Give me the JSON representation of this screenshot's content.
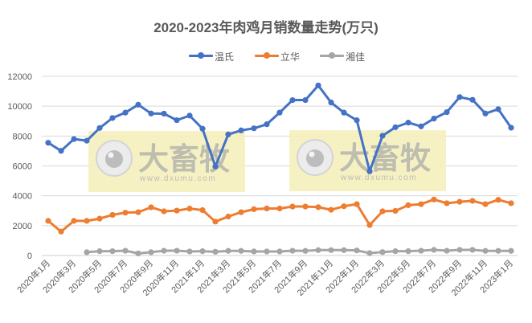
{
  "chart_data": {
    "type": "line",
    "title": "2020-2023年肉鸡月销数量走势(万只)",
    "xlabel": "",
    "ylabel": "",
    "ylim": [
      0,
      12000
    ],
    "yticks": [
      0,
      2000,
      4000,
      6000,
      8000,
      10000,
      12000
    ],
    "grid": true,
    "legend_position": "top",
    "categories": [
      "2020年1月",
      "2020年2月",
      "2020年3月",
      "2020年4月",
      "2020年5月",
      "2020年6月",
      "2020年7月",
      "2020年8月",
      "2020年9月",
      "2020年10月",
      "2020年11月",
      "2020年12月",
      "2021年1月",
      "2021年2月",
      "2021年3月",
      "2021年4月",
      "2021年5月",
      "2021年6月",
      "2021年7月",
      "2021年8月",
      "2021年9月",
      "2021年10月",
      "2021年11月",
      "2021年12月",
      "2022年1月",
      "2022年2月",
      "2022年3月",
      "2022年4月",
      "2022年5月",
      "2022年6月",
      "2022年7月",
      "2022年8月",
      "2022年9月",
      "2022年10月",
      "2022年11月",
      "2022年12月",
      "2023年1月"
    ],
    "x_tick_labels_shown": [
      "2020年1月",
      "2020年3月",
      "2020年5月",
      "2020年7月",
      "2020年9月",
      "2020年11月",
      "2021年1月",
      "2021年3月",
      "2021年5月",
      "2021年7月",
      "2021年9月",
      "2021年11月",
      "2022年1月",
      "2022年3月",
      "2022年5月",
      "2022年7月",
      "2022年9月",
      "2022年11月",
      "2023年1月"
    ],
    "series": [
      {
        "name": "温氏",
        "color": "#4472C4",
        "values": [
          7550,
          7010,
          7800,
          7690,
          8540,
          9210,
          9570,
          10100,
          9510,
          9500,
          9060,
          9370,
          8490,
          5960,
          8110,
          8380,
          8520,
          8790,
          9570,
          10410,
          10410,
          11390,
          10250,
          9570,
          9060,
          5640,
          8020,
          8590,
          8900,
          8650,
          9170,
          9600,
          10610,
          10430,
          9510,
          9800,
          8560
        ]
      },
      {
        "name": "立华",
        "color": "#ED7D31",
        "values": [
          2320,
          1600,
          2320,
          2320,
          2470,
          2720,
          2870,
          2900,
          3230,
          2960,
          3010,
          3140,
          3040,
          2270,
          2610,
          2900,
          3100,
          3150,
          3150,
          3280,
          3280,
          3240,
          3060,
          3300,
          3440,
          2040,
          2960,
          2990,
          3370,
          3440,
          3750,
          3500,
          3600,
          3660,
          3440,
          3730,
          3500
        ]
      },
      {
        "name": "湘佳",
        "color": "#A5A5A5",
        "values": [
          null,
          null,
          null,
          220,
          290,
          290,
          320,
          140,
          220,
          320,
          320,
          270,
          290,
          250,
          310,
          310,
          270,
          270,
          270,
          320,
          310,
          360,
          360,
          360,
          340,
          160,
          230,
          290,
          290,
          320,
          380,
          320,
          380,
          380,
          310,
          310,
          310
        ]
      }
    ]
  },
  "watermark": {
    "brand": "大畜牧",
    "url": "www.dxumu.com"
  }
}
